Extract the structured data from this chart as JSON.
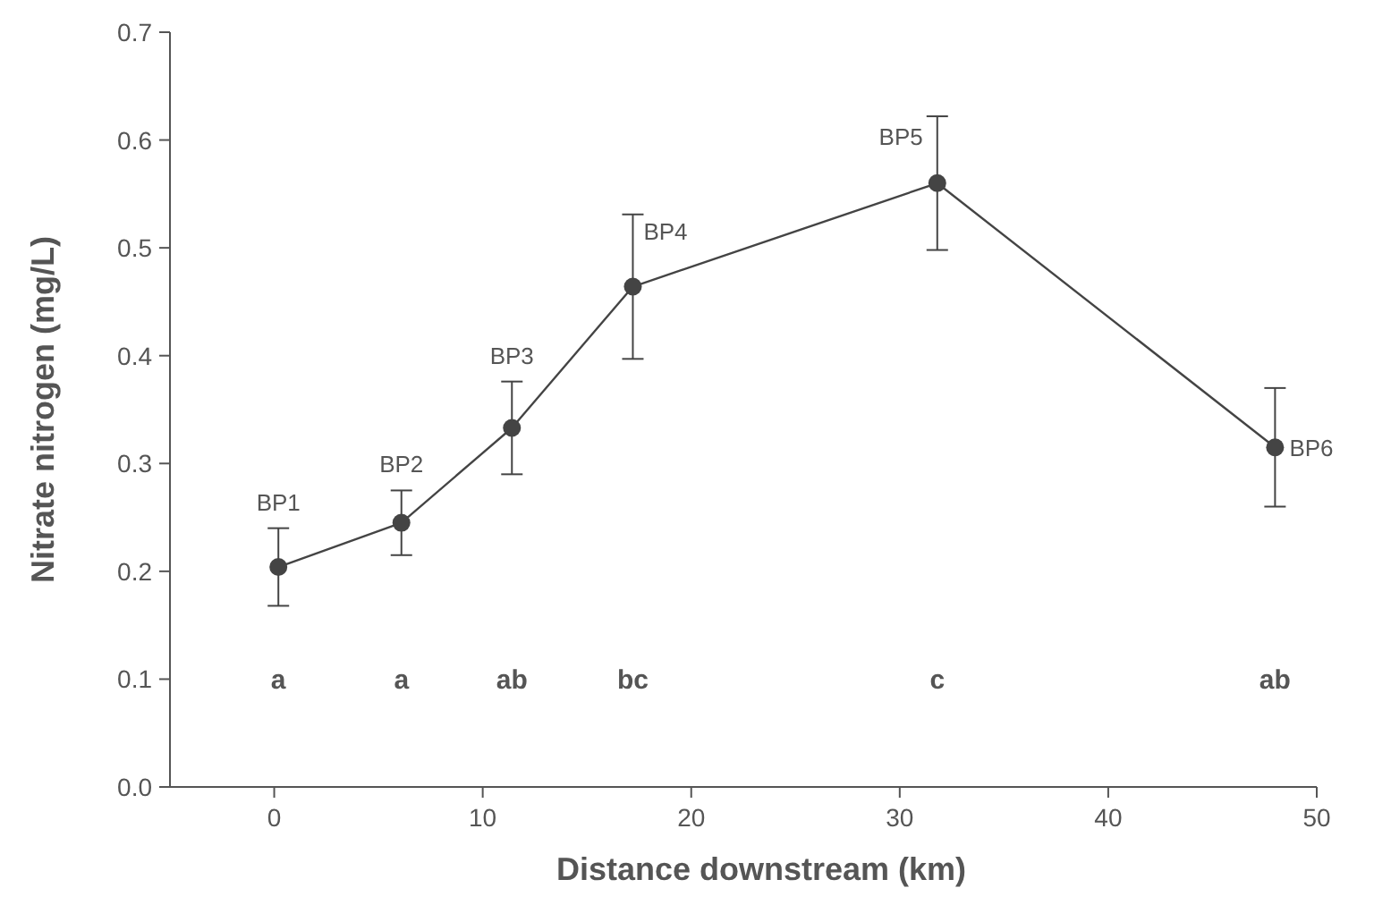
{
  "chart_data": {
    "type": "line",
    "xlabel": "Distance downstream (km)",
    "ylabel": "Nitrate nitrogen (mg/L)",
    "x": [
      0.2,
      6.1,
      11.4,
      17.2,
      31.8,
      48.0
    ],
    "series": [
      {
        "color": "#444444",
        "values": [
          0.204,
          0.245,
          0.333,
          0.464,
          0.56,
          0.315
        ],
        "errors": [
          0.036,
          0.03,
          0.043,
          0.067,
          0.062,
          0.055
        ]
      }
    ],
    "xlim": [
      -5,
      50
    ],
    "xticks": [
      0,
      10,
      20,
      30,
      40,
      50
    ],
    "ylim": [
      0,
      0.7
    ],
    "yticks": [
      {
        "value": 0,
        "label": "0.0"
      },
      0.1,
      0.2,
      0.3,
      0.4,
      0.5,
      0.6,
      0.7
    ],
    "marker": "circle",
    "line_style": "solid",
    "grid": false,
    "annotations": [
      {
        "text": "BP1",
        "x": 0.2,
        "y": 0.204
      },
      {
        "text": "BP2",
        "x": 6.1,
        "y": 0.245
      },
      {
        "text": "BP3",
        "x": 11.4,
        "y": 0.333
      },
      {
        "text": "BP4",
        "x": 17.2,
        "y": 0.464
      },
      {
        "text": "BP5",
        "x": 31.8,
        "y": 0.56
      },
      {
        "text": "BP6",
        "x": 48.0,
        "y": 0.315
      },
      "a",
      "a",
      "ab",
      "bc",
      "c",
      "ab"
    ]
  }
}
